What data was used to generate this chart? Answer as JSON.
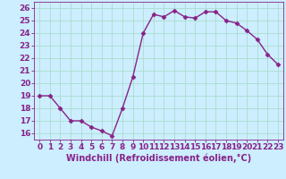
{
  "x": [
    0,
    1,
    2,
    3,
    4,
    5,
    6,
    7,
    8,
    9,
    10,
    11,
    12,
    13,
    14,
    15,
    16,
    17,
    18,
    19,
    20,
    21,
    22,
    23
  ],
  "y": [
    19.0,
    19.0,
    18.0,
    17.0,
    17.0,
    16.5,
    16.2,
    15.8,
    18.0,
    20.5,
    24.0,
    25.5,
    25.3,
    25.8,
    25.3,
    25.2,
    25.7,
    25.7,
    25.0,
    24.8,
    24.2,
    23.5,
    22.3,
    21.5
  ],
  "line_color": "#882288",
  "marker": "D",
  "marker_size": 2.5,
  "bg_color": "#cceeff",
  "grid_color": "#aaddcc",
  "xlabel": "Windchill (Refroidissement éolien,°C)",
  "xlabel_color": "#882288",
  "ylim": [
    15.5,
    26.5
  ],
  "xlim": [
    -0.5,
    23.5
  ],
  "yticks": [
    16,
    17,
    18,
    19,
    20,
    21,
    22,
    23,
    24,
    25,
    26
  ],
  "xticks": [
    0,
    1,
    2,
    3,
    4,
    5,
    6,
    7,
    8,
    9,
    10,
    11,
    12,
    13,
    14,
    15,
    16,
    17,
    18,
    19,
    20,
    21,
    22,
    23
  ],
  "tick_color": "#882288",
  "tick_label_size": 6.5,
  "xlabel_size": 7,
  "linewidth": 1.0
}
